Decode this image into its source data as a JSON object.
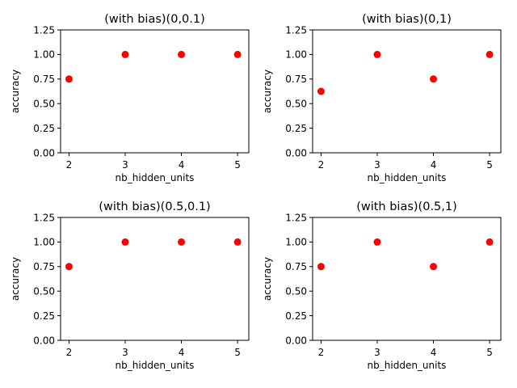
{
  "chart_data": [
    {
      "type": "scatter",
      "title": "(with bias)(0,0.1)",
      "xlabel": "nb_hidden_units",
      "ylabel": "accuracy",
      "x": [
        2,
        3,
        4,
        5
      ],
      "y": [
        0.75,
        1.0,
        1.0,
        1.0
      ],
      "xticks": [
        2,
        3,
        4,
        5
      ],
      "yticks": [
        0.0,
        0.25,
        0.5,
        0.75,
        1.0,
        1.25
      ],
      "xlim": [
        1.85,
        5.2
      ],
      "ylim": [
        0.0,
        1.25
      ],
      "grid": false,
      "color": "#ff0000"
    },
    {
      "type": "scatter",
      "title": "(with bias)(0,1)",
      "xlabel": "nb_hidden_units",
      "ylabel": "accuracy",
      "x": [
        2,
        3,
        4,
        5
      ],
      "y": [
        0.625,
        1.0,
        0.75,
        1.0
      ],
      "xticks": [
        2,
        3,
        4,
        5
      ],
      "yticks": [
        0.0,
        0.25,
        0.5,
        0.75,
        1.0,
        1.25
      ],
      "xlim": [
        1.85,
        5.2
      ],
      "ylim": [
        0.0,
        1.25
      ],
      "grid": false,
      "color": "#ff0000"
    },
    {
      "type": "scatter",
      "title": "(with bias)(0.5,0.1)",
      "xlabel": "nb_hidden_units",
      "ylabel": "accuracy",
      "x": [
        2,
        3,
        4,
        5
      ],
      "y": [
        0.75,
        1.0,
        1.0,
        1.0
      ],
      "xticks": [
        2,
        3,
        4,
        5
      ],
      "yticks": [
        0.0,
        0.25,
        0.5,
        0.75,
        1.0,
        1.25
      ],
      "xlim": [
        1.85,
        5.2
      ],
      "ylim": [
        0.0,
        1.25
      ],
      "grid": false,
      "color": "#ff0000"
    },
    {
      "type": "scatter",
      "title": "(with bias)(0.5,1)",
      "xlabel": "nb_hidden_units",
      "ylabel": "accuracy",
      "x": [
        2,
        3,
        4,
        5
      ],
      "y": [
        0.75,
        1.0,
        0.75,
        1.0
      ],
      "xticks": [
        2,
        3,
        4,
        5
      ],
      "yticks": [
        0.0,
        0.25,
        0.5,
        0.75,
        1.0,
        1.25
      ],
      "xlim": [
        1.85,
        5.2
      ],
      "ylim": [
        0.0,
        1.25
      ],
      "grid": false,
      "color": "#ff0000"
    }
  ]
}
